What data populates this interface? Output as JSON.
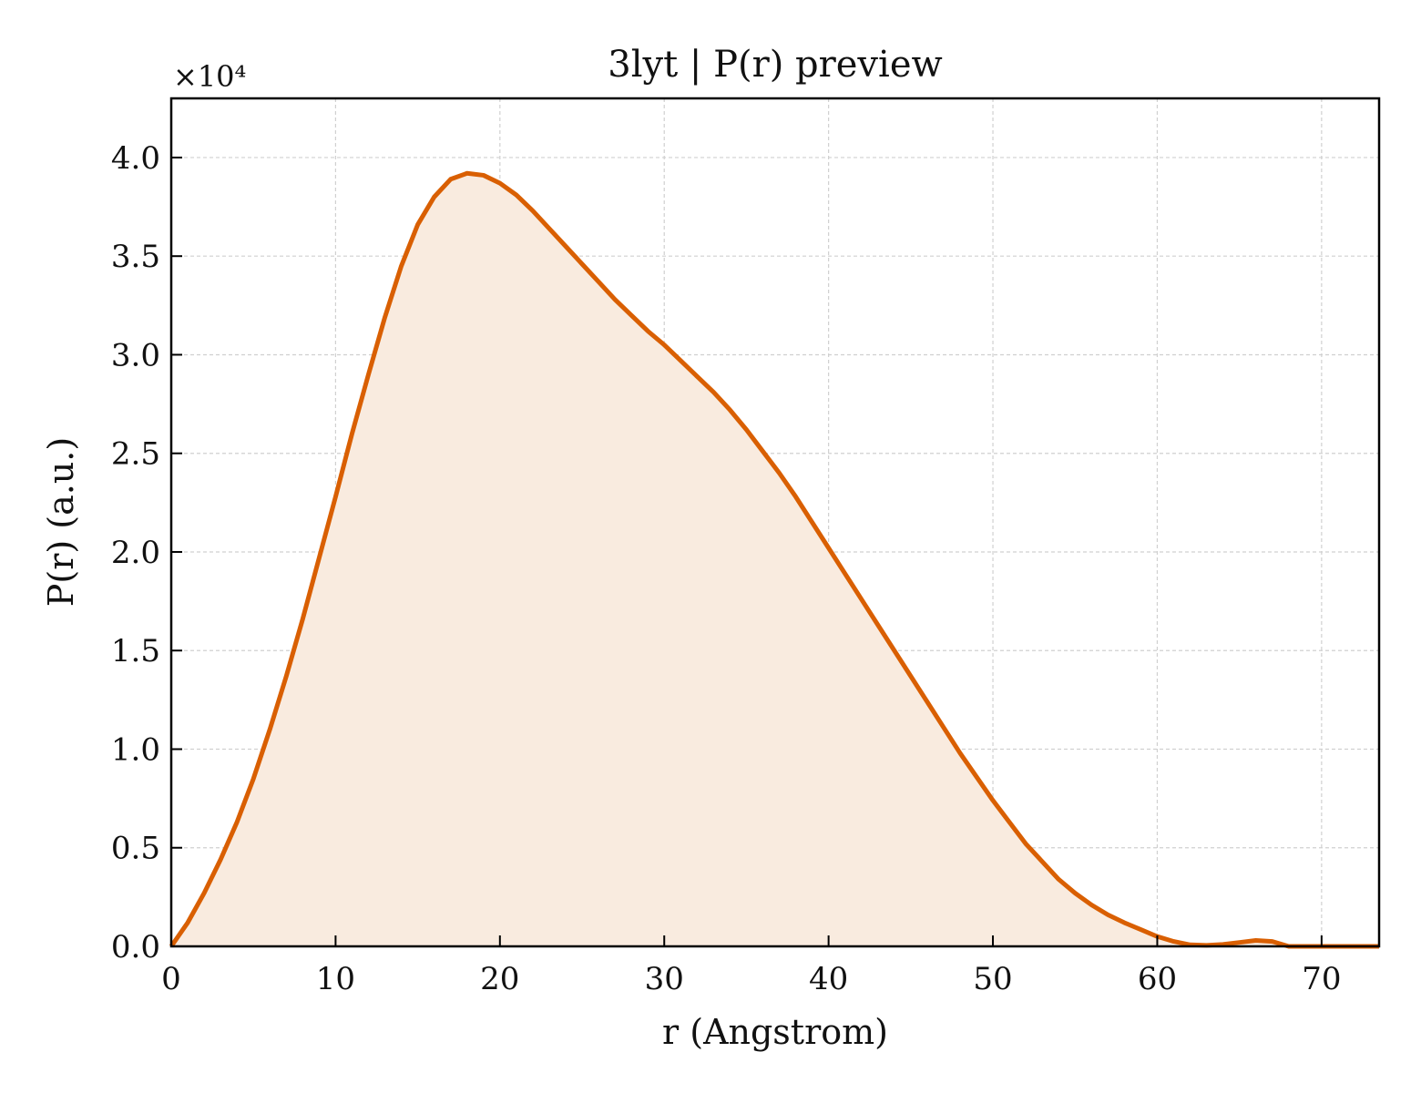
{
  "chart_data": {
    "type": "area",
    "title": "3lyt | P(r) preview",
    "xlabel": "r (Angstrom)",
    "ylabel": "P(r) (a.u.)",
    "y_multiplier_label": "×10⁴",
    "xlim": [
      0,
      73.5
    ],
    "ylim": [
      0,
      43000
    ],
    "x_ticks": [
      0,
      10,
      20,
      30,
      40,
      50,
      60,
      70
    ],
    "x_tick_labels": [
      "0",
      "10",
      "20",
      "30",
      "40",
      "50",
      "60",
      "70"
    ],
    "y_ticks": [
      0,
      5000,
      10000,
      15000,
      20000,
      25000,
      30000,
      35000,
      40000
    ],
    "y_tick_labels": [
      "0.0",
      "0.5",
      "1.0",
      "1.5",
      "2.0",
      "2.5",
      "3.0",
      "3.5",
      "4.0"
    ],
    "grid": true,
    "line_color": "#d95f02",
    "fill_color": "#f9ebdf",
    "series": [
      {
        "x": [
          0,
          1,
          2,
          3,
          4,
          5,
          6,
          7,
          8,
          9,
          10,
          11,
          12,
          13,
          14,
          15,
          16,
          17,
          18,
          19,
          20,
          21,
          22,
          23,
          24,
          25,
          26,
          27,
          28,
          29,
          30,
          31,
          32,
          33,
          34,
          35,
          36,
          37,
          38,
          39,
          40,
          41,
          42,
          43,
          44,
          45,
          46,
          47,
          48,
          49,
          50,
          51,
          52,
          53,
          54,
          55,
          56,
          57,
          58,
          59,
          60,
          61,
          62,
          63,
          64,
          65,
          66,
          67,
          68,
          69,
          70,
          71,
          72,
          73,
          73.5
        ],
        "values": [
          0,
          1200,
          2700,
          4400,
          6300,
          8500,
          11000,
          13700,
          16600,
          19700,
          22800,
          26000,
          29000,
          31900,
          34500,
          36600,
          38000,
          38900,
          39200,
          39100,
          38700,
          38100,
          37300,
          36400,
          35500,
          34600,
          33700,
          32800,
          32000,
          31200,
          30500,
          29700,
          28900,
          28100,
          27200,
          26200,
          25100,
          24000,
          22800,
          21500,
          20200,
          18900,
          17600,
          16300,
          15000,
          13700,
          12400,
          11100,
          9800,
          8600,
          7400,
          6300,
          5200,
          4300,
          3400,
          2700,
          2100,
          1600,
          1200,
          850,
          500,
          250,
          80,
          50,
          100,
          200,
          300,
          250,
          0,
          0,
          0,
          0,
          0,
          0,
          0
        ]
      }
    ]
  }
}
